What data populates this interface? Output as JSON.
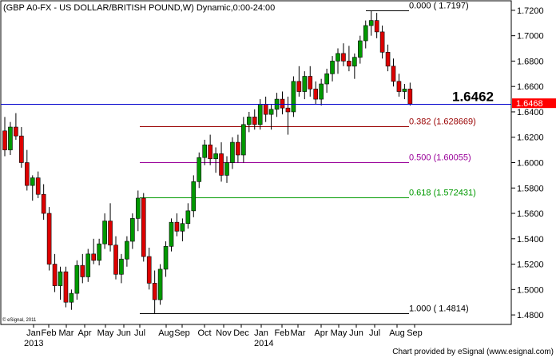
{
  "chart_data": {
    "type": "candlestick",
    "title": "(GBP A0-FX - US DOLLAR/BRITISH POUND,W) Dynamic,0:00-24:00",
    "x_tick_labels": [
      "Jan",
      "Feb",
      "Mar",
      "Apr",
      "May",
      "Jun",
      "Jul",
      "Aug",
      "Sep",
      "Oct",
      "Nov",
      "Dec",
      "Jan",
      "Feb",
      "Mar",
      "Apr",
      "May",
      "Jun",
      "Jul",
      "Aug",
      "Sep"
    ],
    "year_labels": [
      "2013",
      "2014"
    ],
    "y_ticks": [
      1.48,
      1.5,
      1.52,
      1.54,
      1.56,
      1.58,
      1.6,
      1.62,
      1.64,
      1.66,
      1.68,
      1.7,
      1.72
    ],
    "ylim": [
      1.4725,
      1.7275
    ],
    "grid": false,
    "up_color": "#009900",
    "down_color": "#dd0000",
    "current_price": {
      "value": 1.6462,
      "label": "1.6462",
      "color": "#0000cc"
    },
    "current_price_tag": {
      "value": 1.6468,
      "label": "1.6468",
      "color": "#ff0000"
    },
    "fib_levels": [
      {
        "ratio": 0.0,
        "price": 1.7197,
        "label": "0.000 ( 1.7197)",
        "color": "#000000"
      },
      {
        "ratio": 0.382,
        "price": 1.628669,
        "label": "0.382 (1.628669)",
        "color": "#990000"
      },
      {
        "ratio": 0.5,
        "price": 1.60055,
        "label": "0.500 (1.60055)",
        "color": "#990099"
      },
      {
        "ratio": 0.618,
        "price": 1.572431,
        "label": "0.618 (1.572431)",
        "color": "#009900"
      },
      {
        "ratio": 1.0,
        "price": 1.4814,
        "label": "1.000 ( 1.4814)",
        "color": "#000000"
      }
    ],
    "candles": [
      {
        "o": 1.625,
        "h": 1.636,
        "l": 1.605,
        "c": 1.61
      },
      {
        "o": 1.61,
        "h": 1.632,
        "l": 1.606,
        "c": 1.628
      },
      {
        "o": 1.628,
        "h": 1.639,
        "l": 1.618,
        "c": 1.621
      },
      {
        "o": 1.621,
        "h": 1.628,
        "l": 1.596,
        "c": 1.6
      },
      {
        "o": 1.6,
        "h": 1.61,
        "l": 1.578,
        "c": 1.582
      },
      {
        "o": 1.582,
        "h": 1.59,
        "l": 1.57,
        "c": 1.588
      },
      {
        "o": 1.588,
        "h": 1.593,
        "l": 1.572,
        "c": 1.575
      },
      {
        "o": 1.575,
        "h": 1.583,
        "l": 1.555,
        "c": 1.56
      },
      {
        "o": 1.56,
        "h": 1.565,
        "l": 1.515,
        "c": 1.52
      },
      {
        "o": 1.52,
        "h": 1.528,
        "l": 1.498,
        "c": 1.503
      },
      {
        "o": 1.503,
        "h": 1.518,
        "l": 1.492,
        "c": 1.514
      },
      {
        "o": 1.514,
        "h": 1.518,
        "l": 1.486,
        "c": 1.49
      },
      {
        "o": 1.49,
        "h": 1.5,
        "l": 1.484,
        "c": 1.497
      },
      {
        "o": 1.497,
        "h": 1.523,
        "l": 1.492,
        "c": 1.519
      },
      {
        "o": 1.519,
        "h": 1.528,
        "l": 1.505,
        "c": 1.51
      },
      {
        "o": 1.51,
        "h": 1.532,
        "l": 1.506,
        "c": 1.528
      },
      {
        "o": 1.528,
        "h": 1.54,
        "l": 1.52,
        "c": 1.523
      },
      {
        "o": 1.523,
        "h": 1.54,
        "l": 1.519,
        "c": 1.536
      },
      {
        "o": 1.536,
        "h": 1.56,
        "l": 1.532,
        "c": 1.554
      },
      {
        "o": 1.554,
        "h": 1.568,
        "l": 1.53,
        "c": 1.535
      },
      {
        "o": 1.535,
        "h": 1.542,
        "l": 1.508,
        "c": 1.512
      },
      {
        "o": 1.512,
        "h": 1.528,
        "l": 1.505,
        "c": 1.524
      },
      {
        "o": 1.524,
        "h": 1.542,
        "l": 1.518,
        "c": 1.538
      },
      {
        "o": 1.538,
        "h": 1.56,
        "l": 1.532,
        "c": 1.556
      },
      {
        "o": 1.556,
        "h": 1.578,
        "l": 1.546,
        "c": 1.572
      },
      {
        "o": 1.572,
        "h": 1.576,
        "l": 1.522,
        "c": 1.526
      },
      {
        "o": 1.526,
        "h": 1.533,
        "l": 1.5,
        "c": 1.505
      },
      {
        "o": 1.505,
        "h": 1.515,
        "l": 1.481,
        "c": 1.492
      },
      {
        "o": 1.492,
        "h": 1.52,
        "l": 1.488,
        "c": 1.516
      },
      {
        "o": 1.516,
        "h": 1.538,
        "l": 1.51,
        "c": 1.534
      },
      {
        "o": 1.534,
        "h": 1.556,
        "l": 1.53,
        "c": 1.553
      },
      {
        "o": 1.553,
        "h": 1.56,
        "l": 1.542,
        "c": 1.546
      },
      {
        "o": 1.546,
        "h": 1.556,
        "l": 1.538,
        "c": 1.552
      },
      {
        "o": 1.552,
        "h": 1.568,
        "l": 1.548,
        "c": 1.562
      },
      {
        "o": 1.562,
        "h": 1.59,
        "l": 1.557,
        "c": 1.585
      },
      {
        "o": 1.585,
        "h": 1.608,
        "l": 1.58,
        "c": 1.604
      },
      {
        "o": 1.604,
        "h": 1.618,
        "l": 1.598,
        "c": 1.614
      },
      {
        "o": 1.614,
        "h": 1.622,
        "l": 1.598,
        "c": 1.603
      },
      {
        "o": 1.603,
        "h": 1.612,
        "l": 1.592,
        "c": 1.607
      },
      {
        "o": 1.607,
        "h": 1.616,
        "l": 1.585,
        "c": 1.59
      },
      {
        "o": 1.59,
        "h": 1.605,
        "l": 1.584,
        "c": 1.6
      },
      {
        "o": 1.6,
        "h": 1.62,
        "l": 1.595,
        "c": 1.616
      },
      {
        "o": 1.616,
        "h": 1.622,
        "l": 1.6,
        "c": 1.606
      },
      {
        "o": 1.606,
        "h": 1.636,
        "l": 1.6,
        "c": 1.63
      },
      {
        "o": 1.63,
        "h": 1.64,
        "l": 1.624,
        "c": 1.636
      },
      {
        "o": 1.636,
        "h": 1.642,
        "l": 1.626,
        "c": 1.63
      },
      {
        "o": 1.63,
        "h": 1.65,
        "l": 1.626,
        "c": 1.646
      },
      {
        "o": 1.646,
        "h": 1.652,
        "l": 1.632,
        "c": 1.638
      },
      {
        "o": 1.638,
        "h": 1.646,
        "l": 1.626,
        "c": 1.642
      },
      {
        "o": 1.642,
        "h": 1.655,
        "l": 1.636,
        "c": 1.65
      },
      {
        "o": 1.65,
        "h": 1.656,
        "l": 1.638,
        "c": 1.643
      },
      {
        "o": 1.643,
        "h": 1.652,
        "l": 1.622,
        "c": 1.64
      },
      {
        "o": 1.64,
        "h": 1.668,
        "l": 1.636,
        "c": 1.664
      },
      {
        "o": 1.664,
        "h": 1.676,
        "l": 1.652,
        "c": 1.656
      },
      {
        "o": 1.656,
        "h": 1.672,
        "l": 1.65,
        "c": 1.668
      },
      {
        "o": 1.668,
        "h": 1.676,
        "l": 1.652,
        "c": 1.658
      },
      {
        "o": 1.658,
        "h": 1.664,
        "l": 1.646,
        "c": 1.65
      },
      {
        "o": 1.65,
        "h": 1.666,
        "l": 1.645,
        "c": 1.662
      },
      {
        "o": 1.662,
        "h": 1.674,
        "l": 1.655,
        "c": 1.67
      },
      {
        "o": 1.67,
        "h": 1.684,
        "l": 1.664,
        "c": 1.68
      },
      {
        "o": 1.68,
        "h": 1.69,
        "l": 1.67,
        "c": 1.686
      },
      {
        "o": 1.686,
        "h": 1.694,
        "l": 1.676,
        "c": 1.68
      },
      {
        "o": 1.68,
        "h": 1.692,
        "l": 1.672,
        "c": 1.676
      },
      {
        "o": 1.676,
        "h": 1.686,
        "l": 1.666,
        "c": 1.683
      },
      {
        "o": 1.683,
        "h": 1.7,
        "l": 1.678,
        "c": 1.696
      },
      {
        "o": 1.696,
        "h": 1.712,
        "l": 1.69,
        "c": 1.708
      },
      {
        "o": 1.708,
        "h": 1.7197,
        "l": 1.7,
        "c": 1.712
      },
      {
        "o": 1.712,
        "h": 1.718,
        "l": 1.698,
        "c": 1.703
      },
      {
        "o": 1.703,
        "h": 1.708,
        "l": 1.682,
        "c": 1.687
      },
      {
        "o": 1.687,
        "h": 1.693,
        "l": 1.672,
        "c": 1.676
      },
      {
        "o": 1.676,
        "h": 1.682,
        "l": 1.66,
        "c": 1.664
      },
      {
        "o": 1.664,
        "h": 1.67,
        "l": 1.652,
        "c": 1.656
      },
      {
        "o": 1.656,
        "h": 1.662,
        "l": 1.65,
        "c": 1.658
      },
      {
        "o": 1.658,
        "h": 1.663,
        "l": 1.645,
        "c": 1.6462
      }
    ]
  },
  "credits": {
    "left": "© eSignal, 2011",
    "bottom": "Chart provided by eSignal (www.esignal.com)"
  }
}
